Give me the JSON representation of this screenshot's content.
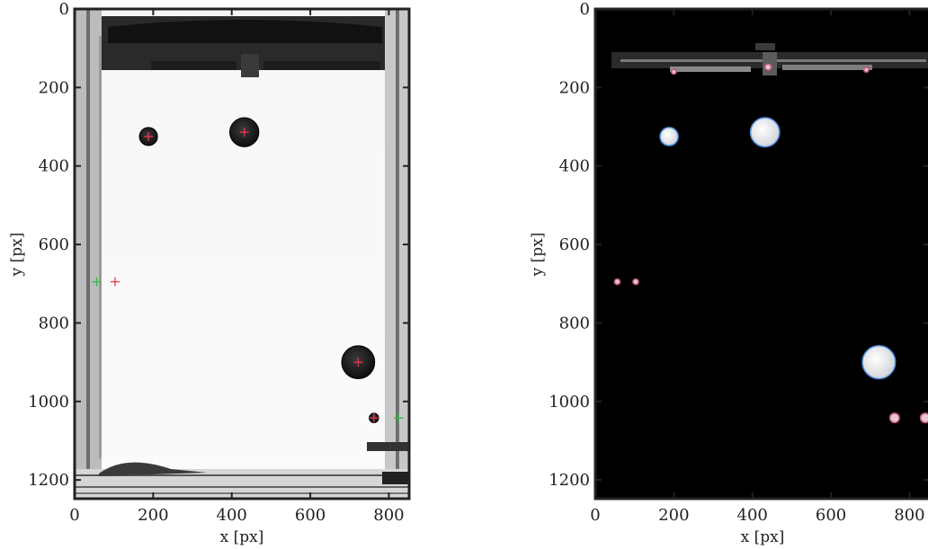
{
  "chart_data": [
    {
      "type": "scatter",
      "panel": "left",
      "title": "",
      "xlabel": "x [px]",
      "ylabel": "y [px]",
      "xlim": [
        0,
        850
      ],
      "ylim": [
        1250,
        0
      ],
      "xticks": [
        0,
        200,
        400,
        600,
        800
      ],
      "yticks": [
        0,
        200,
        400,
        600,
        800,
        1000,
        1200
      ],
      "background": "#ffffff",
      "grid": false,
      "bubbles": [
        {
          "x": 188,
          "y": 325,
          "r": 23
        },
        {
          "x": 432,
          "y": 314,
          "r": 37
        },
        {
          "x": 722,
          "y": 900,
          "r": 42
        },
        {
          "x": 762,
          "y": 1042,
          "r": 12
        }
      ],
      "red_markers": [
        {
          "x": 188,
          "y": 325
        },
        {
          "x": 432,
          "y": 314
        },
        {
          "x": 722,
          "y": 900
        },
        {
          "x": 103,
          "y": 695
        },
        {
          "x": 762,
          "y": 1042
        }
      ],
      "green_markers": [
        {
          "x": 56,
          "y": 695
        },
        {
          "x": 825,
          "y": 1042
        }
      ]
    },
    {
      "type": "scatter",
      "panel": "right",
      "title": "",
      "xlabel": "x [px]",
      "ylabel": "y [px]",
      "xlim": [
        0,
        850
      ],
      "ylim": [
        1250,
        0
      ],
      "xticks": [
        0,
        200,
        400,
        600,
        800
      ],
      "yticks": [
        0,
        200,
        400,
        600,
        800,
        1000,
        1200
      ],
      "background": "#000000",
      "grid": false,
      "bubbles": [
        {
          "x": 188,
          "y": 325,
          "r": 23
        },
        {
          "x": 432,
          "y": 314,
          "r": 37
        },
        {
          "x": 722,
          "y": 900,
          "r": 42
        },
        {
          "x": 762,
          "y": 1042,
          "r": 12
        },
        {
          "x": 840,
          "y": 1042,
          "r": 12
        },
        {
          "x": 56,
          "y": 695,
          "r": 7
        },
        {
          "x": 103,
          "y": 695,
          "r": 7
        },
        {
          "x": 200,
          "y": 160,
          "r": 6
        },
        {
          "x": 440,
          "y": 148,
          "r": 8
        },
        {
          "x": 690,
          "y": 155,
          "r": 6
        }
      ]
    }
  ],
  "colors": {
    "marker_red": "#e8364e",
    "marker_green": "#39b54a",
    "outline_blue": "#4a90e2",
    "outline_pink": "#c45a78",
    "bubble_dark": "#1a1a1a",
    "bubble_light": "#ececf0"
  }
}
